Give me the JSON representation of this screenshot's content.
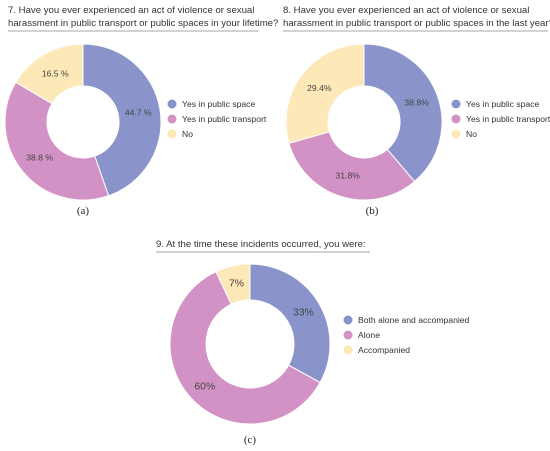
{
  "chart_data": [
    {
      "type": "pie",
      "donut": true,
      "title_lines": [
        "7.  Have you ever experienced an act of violence or sexual",
        "harassment in public transport or public spaces in your lifetime?"
      ],
      "caption": "(a)",
      "categories": [
        "Yes in public space",
        "Yes in public transport",
        "No"
      ],
      "values": [
        44.7,
        38.8,
        16.5
      ],
      "labels": [
        "44.7 %",
        "38.8 %",
        "16.5 %"
      ],
      "colors": [
        "#8a94cb",
        "#d392c6",
        "#fde8b7"
      ],
      "legend_position": "right"
    },
    {
      "type": "pie",
      "donut": true,
      "title_lines": [
        "8.  Have you ever experienced an act of violence or sexual",
        "harassment in public transport or public spaces in the last year?"
      ],
      "caption": "(b)",
      "categories": [
        "Yes in public space",
        "Yes in public transport",
        "No"
      ],
      "values": [
        38.8,
        31.8,
        29.4
      ],
      "labels": [
        "38.8%",
        "31.8%",
        "29.4%"
      ],
      "colors": [
        "#8a94cb",
        "#d392c6",
        "#fde8b7"
      ],
      "legend_position": "right"
    },
    {
      "type": "pie",
      "donut": true,
      "title_lines": [
        "9.  At the time these incidents occurred, you were:"
      ],
      "caption": "(c)",
      "categories": [
        "Both alone and accompanied",
        "Alone",
        "Accompanied"
      ],
      "values": [
        33,
        60,
        7
      ],
      "labels": [
        "33%",
        "60%",
        "7%"
      ],
      "colors": [
        "#8a94cb",
        "#d392c6",
        "#fde8b7"
      ],
      "legend_position": "right"
    }
  ]
}
